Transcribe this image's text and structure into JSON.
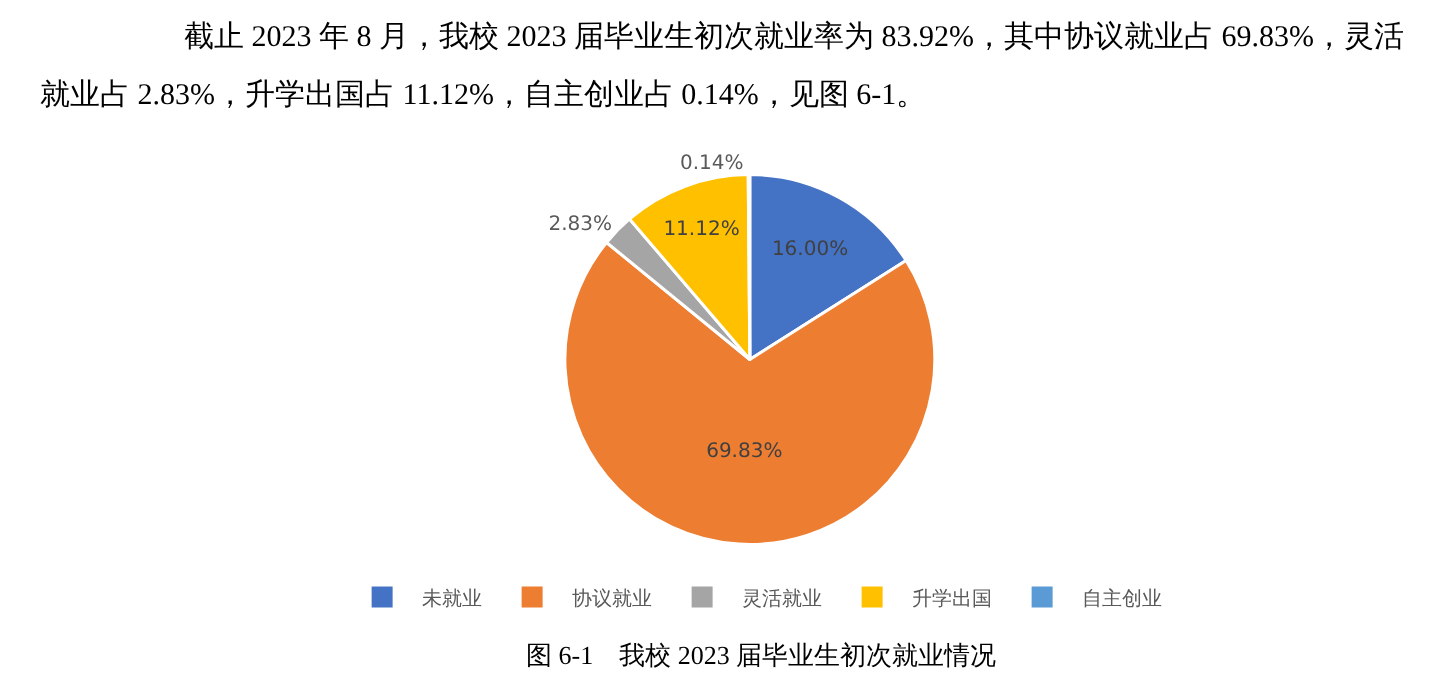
{
  "chart_data": {
    "type": "pie",
    "title": "截止 2023 年 8 月，我校 2023 届毕业生初次就业率为 83.92%，其中协议就业占 69.83%，灵活就业占 2.83%，升学出国占 11.12%，自主创业占 0.14%，见图 6-1。",
    "categories": [
      "未就业",
      "协议就业",
      "灵活就业",
      "升学出国",
      "自主创业"
    ],
    "values": [
      16.0,
      69.83,
      2.83,
      11.12,
      0.14
    ],
    "colors": [
      "#4472c4",
      "#ed7d31",
      "#a5a5a5",
      "#ffc000",
      "#5b9bd5"
    ],
    "value_labels": [
      "16.00%",
      "69.83%",
      "2.83%",
      "11.12%",
      "0.14%"
    ],
    "legend": "bottom",
    "annotations": [
      "图 6-1    我校 2023 届毕业生初次就业情况"
    ]
  }
}
